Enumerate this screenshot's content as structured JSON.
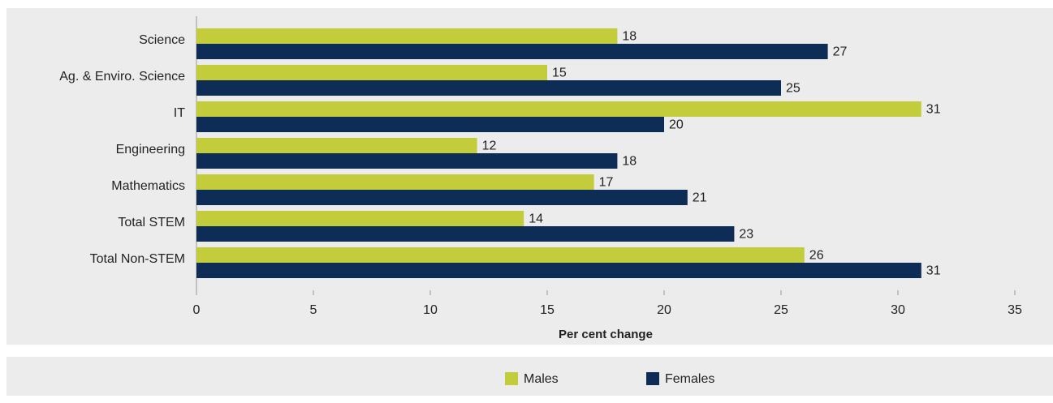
{
  "chart_data": {
    "type": "bar",
    "orientation": "horizontal",
    "x_label": "Per cent change",
    "categories": [
      "Science",
      "Ag. & Enviro. Science",
      "IT",
      "Engineering",
      "Mathematics",
      "Total STEM",
      "Total Non-STEM"
    ],
    "series": [
      {
        "name": "Males",
        "color": "#c3cc3a",
        "values": [
          18,
          15,
          31,
          12,
          17,
          14,
          26
        ]
      },
      {
        "name": "Females",
        "color": "#0d2c56",
        "values": [
          27,
          25,
          20,
          18,
          21,
          23,
          31
        ]
      }
    ],
    "xlim": [
      0,
      35
    ],
    "xticks": [
      0,
      5,
      10,
      15,
      20,
      25,
      30,
      35
    ],
    "legend": "bottom"
  }
}
